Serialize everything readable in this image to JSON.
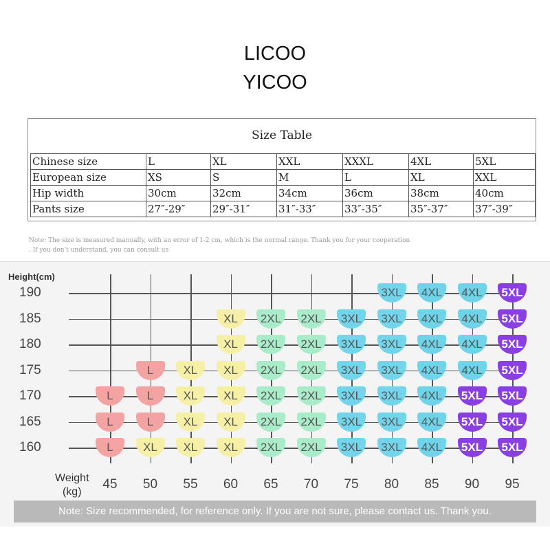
{
  "header": {
    "lines": [
      "LICOO",
      "YICOO"
    ]
  },
  "table": {
    "title": "Size Table",
    "rows": [
      [
        "Chinese size",
        "L",
        "XL",
        "XXL",
        "XXXL",
        "4XL",
        "5XL"
      ],
      [
        "European size",
        "XS",
        "S",
        "M",
        "L",
        "XL",
        "XXL"
      ],
      [
        "Hip width",
        "30cm",
        "32cm",
        "34cm",
        "36cm",
        "38cm",
        "40cm"
      ],
      [
        "Pants size",
        "27″-29″",
        "29″-31″",
        "31″-33″",
        "33″-35″",
        "35″-37″",
        "37″-39″"
      ]
    ]
  },
  "note": [
    "Note: The size is measured manually, with an error of 1-2 cm, which is the normal range. Thank you for your cooperation",
    ". If you don't understand, you can consult us"
  ],
  "size_chart": {
    "y_label": "Height(cm)",
    "x_label": [
      "Weight",
      "(kg)"
    ],
    "heights": [
      190,
      185,
      180,
      175,
      170,
      165,
      160
    ],
    "weights": [
      45,
      50,
      55,
      60,
      65,
      70,
      75,
      80,
      85,
      90,
      95
    ],
    "cells": [
      [
        null,
        null,
        null,
        null,
        null,
        null,
        null,
        "3XL",
        "4XL",
        "4XL",
        "5XL"
      ],
      [
        null,
        null,
        null,
        "XL",
        "2XL",
        "2XL",
        "3XL",
        "3XL",
        "4XL",
        "4XL",
        "5XL"
      ],
      [
        null,
        null,
        null,
        "XL",
        "2XL",
        "2XL",
        "3XL",
        "3XL",
        "4XL",
        "4XL",
        "5XL"
      ],
      [
        null,
        "L",
        "XL",
        "XL",
        "2XL",
        "2XL",
        "3XL",
        "3XL",
        "4XL",
        "4XL",
        "5XL"
      ],
      [
        "L",
        "L",
        "XL",
        "XL",
        "2XL",
        "2XL",
        "3XL",
        "3XL",
        "4XL",
        "5XL",
        "5XL"
      ],
      [
        "L",
        "L",
        "XL",
        "XL",
        "2XL",
        "2XL",
        "3XL",
        "3XL",
        "4XL",
        "5XL",
        "5XL"
      ],
      [
        "L",
        "XL",
        "XL",
        "XL",
        "2XL",
        "2XL",
        "3XL",
        "3XL",
        "4XL",
        "5XL",
        "5XL"
      ]
    ],
    "colors": {
      "L": "#f4a3a3",
      "XL": "#f6f0a6",
      "2XL": "#a9ecc9",
      "3XL": "#72d5ec",
      "4XL": "#6fd3ea",
      "5XL": "#8a3fe3"
    }
  },
  "footer": "Note: Size recommended, for reference only. If you are not sure, please contact us. Thank you."
}
